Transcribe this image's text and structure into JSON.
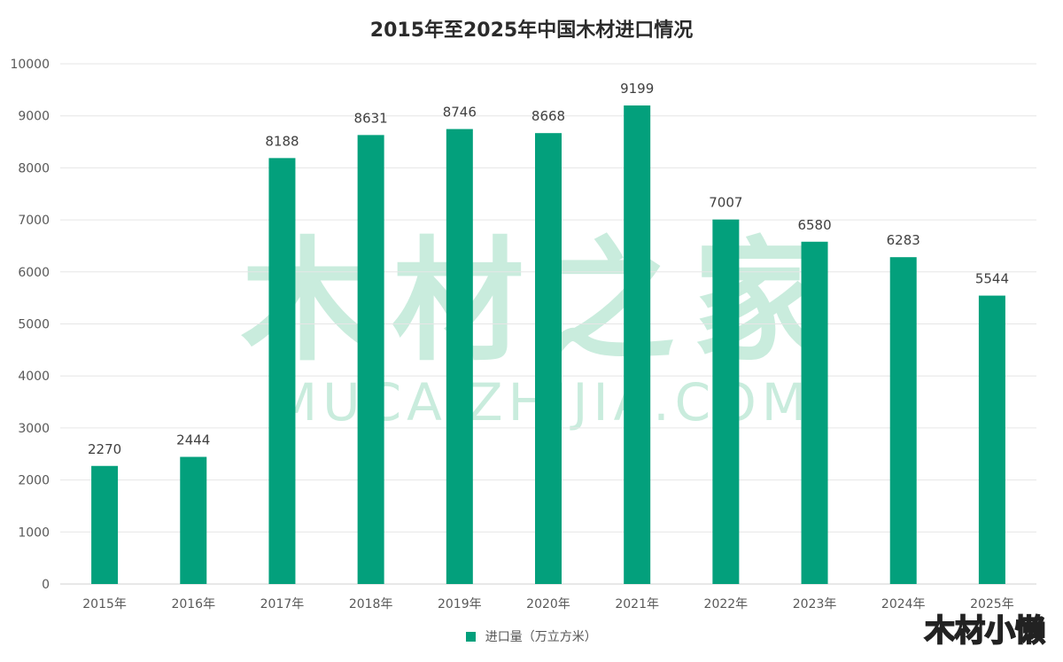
{
  "chart_data": {
    "type": "bar",
    "title": "2015年至2025年中国木材进口情况",
    "categories": [
      "2015年",
      "2016年",
      "2017年",
      "2018年",
      "2019年",
      "2020年",
      "2021年",
      "2022年",
      "2023年",
      "2024年",
      "2025年"
    ],
    "series": [
      {
        "name": "进口量（万立方米）",
        "values": [
          2270,
          2444,
          8188,
          8631,
          8746,
          8668,
          9199,
          7007,
          6580,
          6283,
          5544
        ]
      }
    ],
    "ylim": [
      0,
      10000
    ],
    "yticks": [
      0,
      1000,
      2000,
      3000,
      4000,
      5000,
      6000,
      7000,
      8000,
      9000,
      10000
    ],
    "grid": true,
    "legend": "bottom",
    "bar_color": "#03A07C"
  },
  "watermark": {
    "main": "木材之家",
    "sub": "MUCAIZHIJIA.COM",
    "color": "#c9ecdd"
  },
  "corner_mark": "木材小懒"
}
